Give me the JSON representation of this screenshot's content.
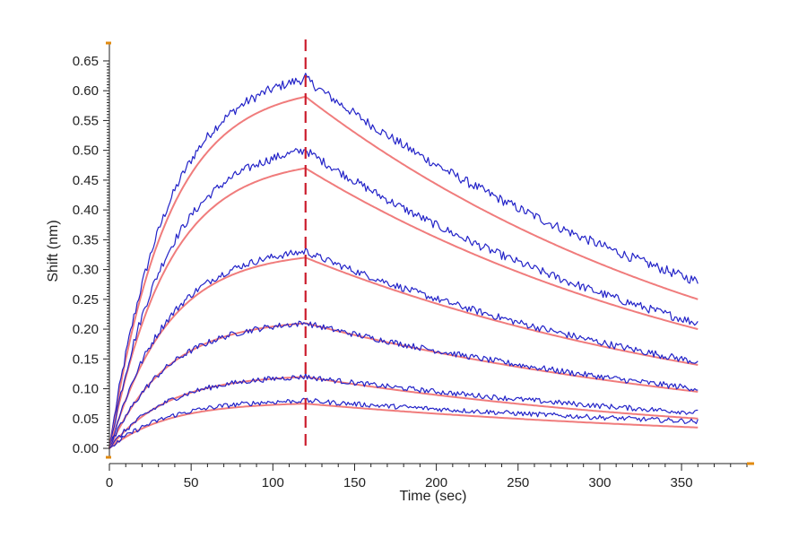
{
  "chart_data": {
    "type": "line",
    "title": "",
    "xlabel": "Time (sec)",
    "ylabel": "Shift (nm)",
    "xlim": [
      0,
      390
    ],
    "ylim": [
      -0.015,
      0.68
    ],
    "xticks": [
      0,
      50,
      100,
      150,
      200,
      250,
      300,
      350
    ],
    "yticks": [
      0.0,
      0.05,
      0.1,
      0.15,
      0.2,
      0.25,
      0.3,
      0.35,
      0.4,
      0.45,
      0.5,
      0.55,
      0.6,
      0.65
    ],
    "ytick_labels": [
      "0.00",
      "0.05",
      "0.10",
      "0.15",
      "0.20",
      "0.25",
      "0.30",
      "0.35",
      "0.40",
      "0.45",
      "0.50",
      "0.55",
      "0.60",
      "0.65"
    ],
    "grid": false,
    "legend": "none",
    "dissociation_start_sec": 120,
    "end_sec": 360,
    "series": [
      {
        "values": {
          "assoc_max": 0.62,
          "fit_assoc_max": 0.59,
          "end": 0.28,
          "fit_end": 0.25
        }
      },
      {
        "values": {
          "assoc_max": 0.5,
          "fit_assoc_max": 0.47,
          "end": 0.21,
          "fit_end": 0.2
        }
      },
      {
        "values": {
          "assoc_max": 0.33,
          "fit_assoc_max": 0.32,
          "end": 0.145,
          "fit_end": 0.14
        }
      },
      {
        "values": {
          "assoc_max": 0.21,
          "fit_assoc_max": 0.21,
          "end": 0.1,
          "fit_end": 0.095
        }
      },
      {
        "values": {
          "assoc_max": 0.12,
          "fit_assoc_max": 0.12,
          "end": 0.06,
          "fit_end": 0.05
        }
      },
      {
        "values": {
          "assoc_max": 0.08,
          "fit_assoc_max": 0.075,
          "end": 0.045,
          "fit_end": 0.035
        }
      }
    ],
    "colors": {
      "data": "#2323c8",
      "fit": "#f07c7c",
      "marker": "#cc1e2e",
      "axis_accent": "#e08a10",
      "axis": "#222222"
    }
  }
}
